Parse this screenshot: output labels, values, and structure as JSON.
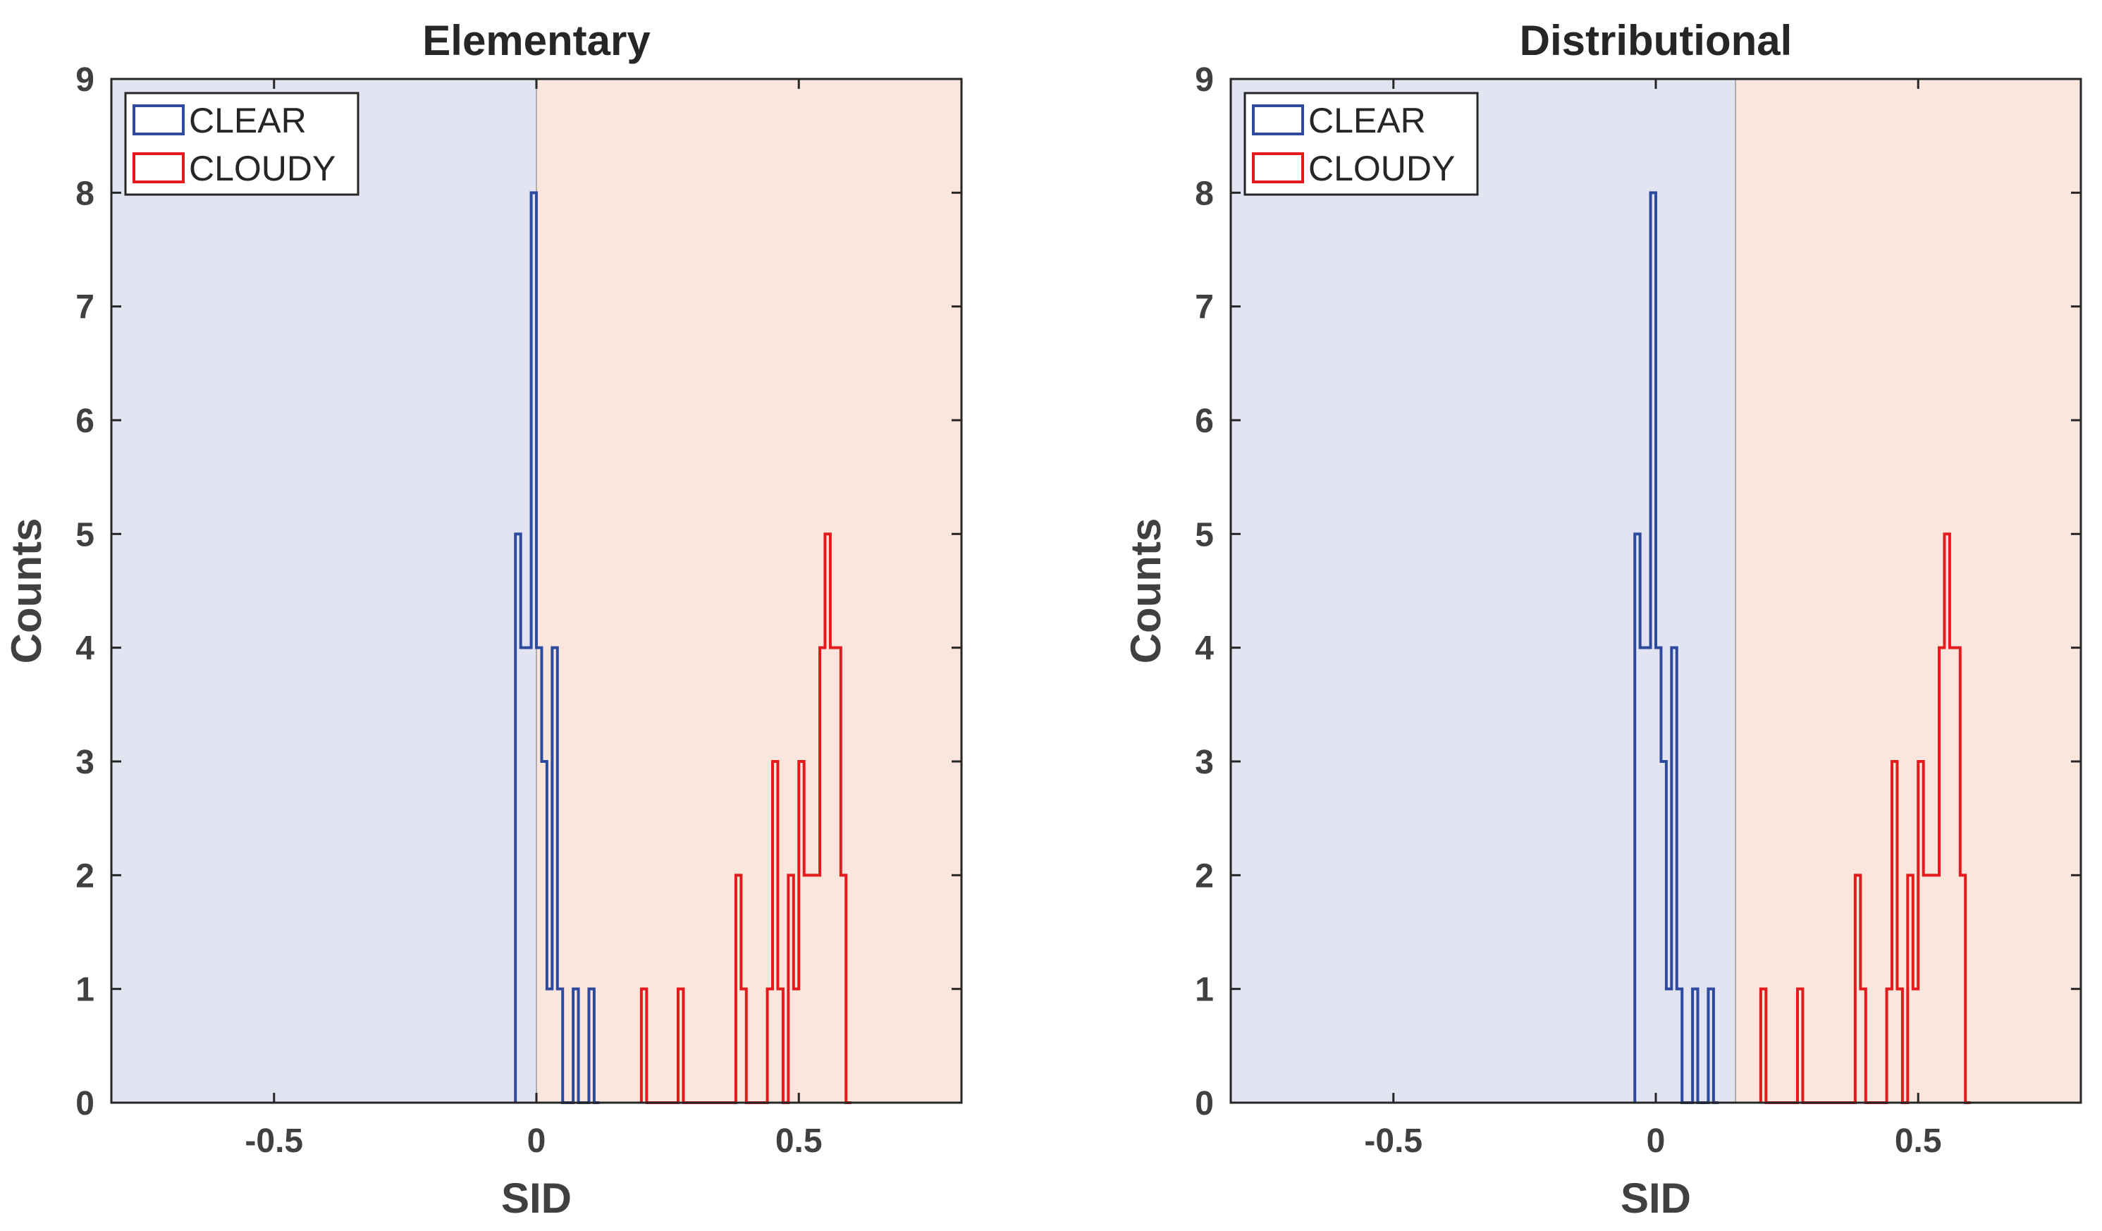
{
  "chart_data": [
    {
      "type": "histogram",
      "title": "Elementary",
      "xlabel": "SID",
      "ylabel": "Counts",
      "xlim": [
        -0.81,
        0.81
      ],
      "ylim": [
        0,
        9
      ],
      "xticks": [
        -0.5,
        0,
        0.5
      ],
      "xtick_labels": [
        "-0.5",
        "0",
        "0.5"
      ],
      "yticks": [
        0,
        1,
        2,
        3,
        4,
        5,
        6,
        7,
        8,
        9
      ],
      "ytick_labels": [
        "0",
        "1",
        "2",
        "3",
        "4",
        "5",
        "6",
        "7",
        "8",
        "9"
      ],
      "threshold": 0.0,
      "region_left_color": "#E2E4F1",
      "region_right_color": "#FBE6DD",
      "legend": {
        "location": "top-left",
        "entries": [
          "CLEAR",
          "CLOUDY"
        ]
      },
      "series": [
        {
          "name": "CLEAR",
          "color": "#2E4A9E",
          "bin_edges": [
            -0.04,
            -0.03,
            -0.02,
            -0.01,
            0.0,
            0.01,
            0.02,
            0.03,
            0.04,
            0.05,
            0.06,
            0.07,
            0.08,
            0.09,
            0.1,
            0.11,
            0.12
          ],
          "counts": [
            5,
            4,
            4,
            8,
            4,
            3,
            1,
            4,
            1,
            0,
            0,
            1,
            0,
            0,
            1,
            0
          ]
        },
        {
          "name": "CLOUDY",
          "color": "#E41A1C",
          "bin_edges": [
            0.2,
            0.21,
            0.22,
            0.23,
            0.24,
            0.25,
            0.26,
            0.27,
            0.28,
            0.29,
            0.3,
            0.31,
            0.32,
            0.33,
            0.34,
            0.35,
            0.36,
            0.37,
            0.38,
            0.39,
            0.4,
            0.41,
            0.42,
            0.43,
            0.44,
            0.45,
            0.46,
            0.47,
            0.48,
            0.49,
            0.5,
            0.51,
            0.52,
            0.53,
            0.54,
            0.55,
            0.56,
            0.57,
            0.58,
            0.59,
            0.6
          ],
          "counts": [
            1,
            0,
            0,
            0,
            0,
            0,
            0,
            1,
            0,
            0,
            0,
            0,
            0,
            0,
            0,
            0,
            0,
            0,
            2,
            1,
            0,
            0,
            0,
            0,
            1,
            3,
            1,
            0,
            2,
            1,
            3,
            2,
            2,
            2,
            4,
            5,
            4,
            4,
            2,
            0
          ]
        }
      ]
    },
    {
      "type": "histogram",
      "title": "Distributional",
      "xlabel": "SID",
      "ylabel": "Counts",
      "xlim": [
        -0.81,
        0.81
      ],
      "ylim": [
        0,
        9
      ],
      "xticks": [
        -0.5,
        0,
        0.5
      ],
      "xtick_labels": [
        "-0.5",
        "0",
        "0.5"
      ],
      "yticks": [
        0,
        1,
        2,
        3,
        4,
        5,
        6,
        7,
        8,
        9
      ],
      "ytick_labels": [
        "0",
        "1",
        "2",
        "3",
        "4",
        "5",
        "6",
        "7",
        "8",
        "9"
      ],
      "threshold": 0.152,
      "region_left_color": "#E2E4F1",
      "region_right_color": "#FBE6DD",
      "legend": {
        "location": "top-left",
        "entries": [
          "CLEAR",
          "CLOUDY"
        ]
      },
      "series": [
        {
          "name": "CLEAR",
          "color": "#2E4A9E",
          "bin_edges": [
            -0.04,
            -0.03,
            -0.02,
            -0.01,
            0.0,
            0.01,
            0.02,
            0.03,
            0.04,
            0.05,
            0.06,
            0.07,
            0.08,
            0.09,
            0.1,
            0.11,
            0.12
          ],
          "counts": [
            5,
            4,
            4,
            8,
            4,
            3,
            1,
            4,
            1,
            0,
            0,
            1,
            0,
            0,
            1,
            0
          ]
        },
        {
          "name": "CLOUDY",
          "color": "#E41A1C",
          "bin_edges": [
            0.2,
            0.21,
            0.22,
            0.23,
            0.24,
            0.25,
            0.26,
            0.27,
            0.28,
            0.29,
            0.3,
            0.31,
            0.32,
            0.33,
            0.34,
            0.35,
            0.36,
            0.37,
            0.38,
            0.39,
            0.4,
            0.41,
            0.42,
            0.43,
            0.44,
            0.45,
            0.46,
            0.47,
            0.48,
            0.49,
            0.5,
            0.51,
            0.52,
            0.53,
            0.54,
            0.55,
            0.56,
            0.57,
            0.58,
            0.59,
            0.6
          ],
          "counts": [
            1,
            0,
            0,
            0,
            0,
            0,
            0,
            1,
            0,
            0,
            0,
            0,
            0,
            0,
            0,
            0,
            0,
            0,
            2,
            1,
            0,
            0,
            0,
            0,
            1,
            3,
            1,
            0,
            2,
            1,
            3,
            2,
            2,
            2,
            4,
            5,
            4,
            4,
            2,
            0
          ]
        }
      ]
    }
  ]
}
